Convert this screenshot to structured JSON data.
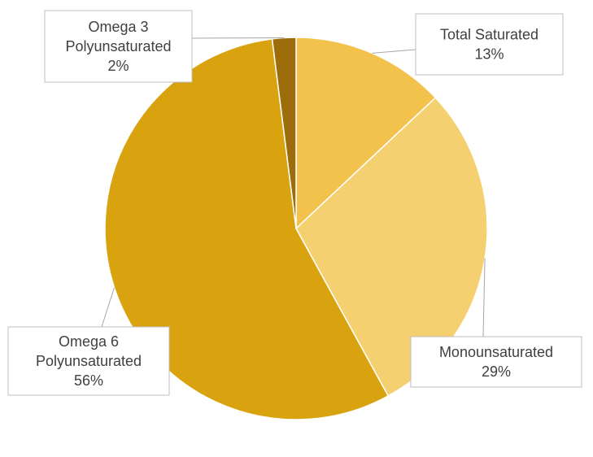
{
  "chart_data": {
    "type": "pie",
    "title": "",
    "slices": [
      {
        "name": "Total Saturated",
        "lines": [
          "Total Saturated"
        ],
        "value": 13,
        "label": "13%",
        "color": "#F2C24C"
      },
      {
        "name": "Monounsaturated",
        "lines": [
          "Monounsaturated"
        ],
        "value": 29,
        "label": "29%",
        "color": "#F5D070"
      },
      {
        "name": "Omega 6 Polyunsaturated",
        "lines": [
          "Omega 6",
          "Polyunsaturated"
        ],
        "value": 56,
        "label": "56%",
        "color": "#D9A20F"
      },
      {
        "name": "Omega 3 Polyunsaturated",
        "lines": [
          "Omega 3",
          "Polyunsaturated"
        ],
        "value": 2,
        "label": "2%",
        "color": "#9C6D0A"
      }
    ],
    "start_angle": "12 o'clock",
    "direction": "clockwise",
    "legend": "none",
    "label_style": "callout boxes"
  }
}
